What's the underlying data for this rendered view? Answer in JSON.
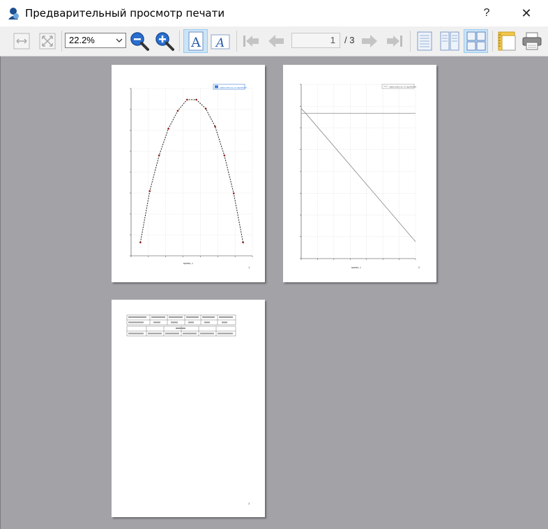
{
  "window": {
    "title": "Предварительный просмотр печати",
    "help_label": "?",
    "close_label": "✕"
  },
  "toolbar": {
    "zoom_value": "22.2%",
    "current_page": "1",
    "page_total": "/ 3",
    "icons": [
      "fit-width-icon",
      "fit-page-icon",
      "zoom-out-icon",
      "zoom-in-icon",
      "portrait-icon",
      "landscape-icon",
      "first-page-icon",
      "prev-page-icon",
      "next-page-icon",
      "last-page-icon",
      "one-page-icon",
      "two-pages-icon",
      "four-pages-icon",
      "page-setup-icon",
      "print-icon"
    ]
  },
  "colors": {
    "canvas": "#a3a2a7",
    "accent": "#3b7dd8",
    "active_bg": "#cce4f7",
    "curve": "#8b1a1a"
  },
  "pages": [
    {
      "legend": "зависимость от времени",
      "xlabel": "время, с",
      "page_no": "1"
    },
    {
      "legend": "зависимость от времени",
      "xlabel": "время, с",
      "page_no": "2"
    },
    {
      "page_no": "3"
    }
  ],
  "chart_data": [
    {
      "type": "line",
      "x": [
        1,
        2,
        3,
        4,
        5,
        6,
        7,
        8,
        9,
        10,
        11,
        12,
        13
      ],
      "y": [
        0.6,
        2.9,
        4.5,
        5.7,
        6.5,
        7.0,
        7.0,
        6.6,
        5.8,
        4.5,
        2.8,
        0.6,
        null
      ],
      "xlim": [
        0,
        13
      ],
      "ylim": [
        0,
        7.5
      ],
      "grid": true,
      "legend_position": "top-right"
    },
    {
      "type": "line",
      "series": [
        {
          "x": [
            0,
            0.4,
            10
          ],
          "y": [
            6.2,
            6.0,
            0.7
          ]
        },
        {
          "x": [
            0,
            10
          ],
          "y": [
            6.0,
            6.0
          ]
        }
      ],
      "xlim": [
        0,
        10
      ],
      "ylim": [
        0,
        7.2
      ],
      "grid": true,
      "legend_position": "top-right"
    }
  ]
}
